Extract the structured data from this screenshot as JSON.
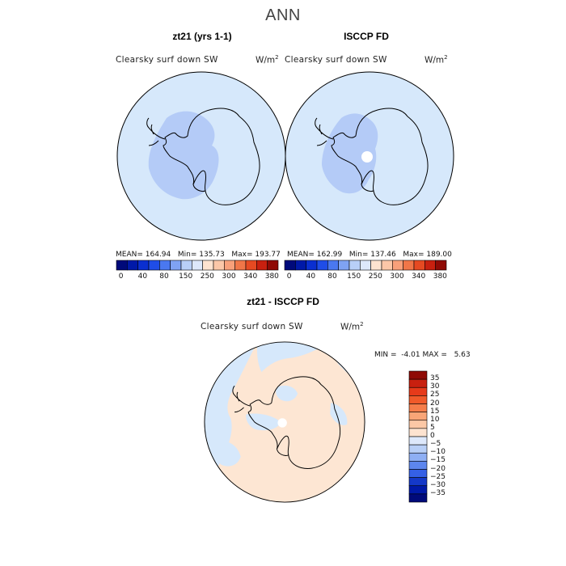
{
  "title": "ANN",
  "panels": [
    {
      "title": "zt21 (yrs 1-1)",
      "variable": "Clearsky surf down SW",
      "units_base": "W/m",
      "units_exp": "2",
      "stats": {
        "mean_label": "MEAN=",
        "mean": "164.94",
        "min_label": "Min=",
        "min": "135.73",
        "max_label": "Max=",
        "max": "193.77"
      }
    },
    {
      "title": "ISCCP FD",
      "variable": "Clearsky surf down SW",
      "units_base": "W/m",
      "units_exp": "2",
      "stats": {
        "mean_label": "MEAN=",
        "mean": "162.99",
        "min_label": "Min=",
        "min": "137.46",
        "max_label": "Max=",
        "max": "189.00"
      }
    },
    {
      "title": "zt21 - ISCCP FD",
      "variable": "Clearsky surf down SW",
      "units_base": "W/m",
      "units_exp": "2",
      "stats": {
        "min_label": "MIN =",
        "min": "-4.01",
        "max_label": "MAX =",
        "max": "5.63"
      }
    }
  ],
  "abs_colorbar": {
    "colors": [
      "#000a7a",
      "#0019a8",
      "#0a2fd0",
      "#1f4de8",
      "#4a78f0",
      "#7fa3f3",
      "#b8cff7",
      "#dde8fb",
      "#fde3d0",
      "#fbc7a8",
      "#f8a07a",
      "#f07648",
      "#e64a22",
      "#c8200f",
      "#8f0a05"
    ],
    "tick_labels": [
      "0",
      "40",
      "80",
      "150",
      "250",
      "300",
      "340",
      "380"
    ]
  },
  "diff_colorbar": {
    "colors": [
      "#8f0a05",
      "#c8200f",
      "#e63a1a",
      "#f05a2a",
      "#f57d4a",
      "#f9a577",
      "#fcc8a6",
      "#fde3d0",
      "#dde8fb",
      "#b8cff7",
      "#8eaff4",
      "#5d86ee",
      "#3560e6",
      "#1438c8",
      "#0019a8",
      "#000a7a"
    ],
    "tick_labels": [
      "35",
      "30",
      "25",
      "20",
      "15",
      "10",
      "5",
      "0",
      "-5",
      "-10",
      "-15",
      "-20",
      "-25",
      "-30",
      "-35"
    ]
  },
  "map_colors": {
    "ocean_light_blue": "#d6e8fb",
    "interior_blue": "#b4cbf7",
    "diff_peach": "#fde6d3",
    "diff_blue": "#d6e8fb",
    "coast": "#000000",
    "polar_hole": "#ffffff"
  }
}
